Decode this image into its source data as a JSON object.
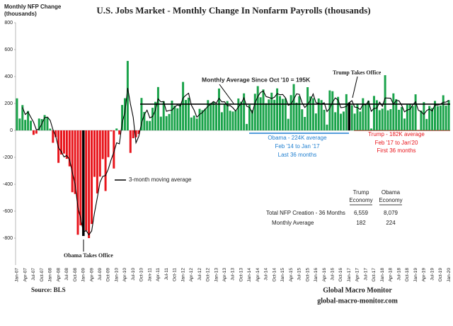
{
  "chart_data": {
    "type": "bar",
    "title": "U.S. Jobs Market - Monthly Change In Nonfarm Payrolls (thousands)",
    "y_label": [
      "Monthly NFP Change",
      "(thousands)"
    ],
    "categories": [
      "Jan-07",
      null,
      null,
      "Apr-07",
      null,
      null,
      "Jul-07",
      null,
      null,
      "Oct-07",
      null,
      null,
      "Jan-08",
      null,
      null,
      "Apr-08",
      null,
      null,
      "Jul-08",
      null,
      null,
      "Oct-08",
      null,
      null,
      "Jan-09",
      null,
      null,
      "Apr-09",
      null,
      null,
      "Jul-09",
      null,
      null,
      "Oct-09",
      null,
      null,
      "Jan-10",
      null,
      null,
      "Apr-10",
      null,
      null,
      "Jul-10",
      null,
      null,
      "Oct-10",
      null,
      null,
      "Jan-11",
      null,
      null,
      "Apr-11",
      null,
      null,
      "Jul-11",
      null,
      null,
      "Oct-11",
      null,
      null,
      "Jan-12",
      null,
      null,
      "Apr-12",
      null,
      null,
      "Jul-12",
      null,
      null,
      "Oct-12",
      null,
      null,
      "Jan-13",
      null,
      null,
      "Apr-13",
      null,
      null,
      "Jul-13",
      null,
      null,
      "Oct-13",
      null,
      null,
      "Jan-14",
      null,
      null,
      "Apr-14",
      null,
      null,
      "Jul-14",
      null,
      null,
      "Oct-14",
      null,
      null,
      "Jan-15",
      null,
      null,
      "Apr-15",
      null,
      null,
      "Jul-15",
      null,
      null,
      "Oct-15",
      null,
      null,
      "Jan-16",
      null,
      null,
      "Apr-16",
      null,
      null,
      "Jul-16",
      null,
      null,
      "Oct-16",
      null,
      null,
      "Jan-17",
      null,
      null,
      "Apr-17",
      null,
      null,
      "Jul-17",
      null,
      null,
      "Oct-17",
      null,
      null,
      "Jan-18",
      null,
      null,
      "Apr-18",
      null,
      null,
      "Jul-18",
      null,
      null,
      "Oct-18",
      null,
      null,
      "Jan-19",
      null,
      null,
      "Apr-19",
      null,
      null,
      "Jul-19",
      null,
      null,
      "Oct-19",
      null,
      null,
      "Jan-20"
    ],
    "values": [
      238,
      88,
      188,
      78,
      144,
      72,
      -33,
      -24,
      88,
      84,
      114,
      98,
      13,
      -92,
      -50,
      -241,
      -179,
      -172,
      -211,
      -267,
      -459,
      -472,
      -775,
      -705,
      -784,
      -743,
      -800,
      -695,
      -345,
      -468,
      -343,
      -213,
      -450,
      -199,
      -7,
      -283,
      14,
      -30,
      189,
      239,
      516,
      -167,
      -58,
      -51,
      -27,
      241,
      137,
      71,
      70,
      168,
      212,
      322,
      102,
      217,
      106,
      122,
      221,
      183,
      164,
      196,
      360,
      226,
      243,
      96,
      110,
      88,
      160,
      150,
      161,
      225,
      203,
      214,
      190,
      311,
      135,
      192,
      218,
      146,
      140,
      147,
      237,
      213,
      275,
      48,
      190,
      151,
      272,
      329,
      246,
      304,
      202,
      230,
      280,
      227,
      312,
      255,
      234,
      238,
      86,
      262,
      344,
      206,
      254,
      157,
      100,
      321,
      252,
      239,
      126,
      237,
      225,
      153,
      43,
      297,
      291,
      135,
      249,
      124,
      140,
      269,
      207,
      187,
      125,
      199,
      140,
      239,
      190,
      221,
      14,
      256,
      224,
      150,
      162,
      410,
      149,
      158,
      275,
      232,
      153,
      174,
      88,
      191,
      195,
      180,
      268,
      1,
      147,
      210,
      85,
      182,
      166,
      219,
      180,
      185,
      261,
      184,
      225
    ],
    "positive_color": "#1aa34a",
    "negative_color": "#e8141b",
    "highlight_color": "#000000",
    "moving_average": {
      "name": "3-month moving average",
      "color": "#000000",
      "values": [
        null,
        null,
        171,
        118,
        137,
        98,
        61,
        5,
        10,
        49,
        95,
        99,
        75,
        6,
        -43,
        -128,
        -157,
        -197,
        -187,
        -217,
        -312,
        -399,
        -569,
        -651,
        -755,
        -744,
        -776,
        -746,
        -613,
        -503,
        -385,
        -341,
        -335,
        -287,
        -219,
        -163,
        -92,
        -100,
        58,
        133,
        315,
        196,
        97,
        -92,
        -45,
        54,
        117,
        150,
        93,
        103,
        150,
        234,
        212,
        214,
        142,
        148,
        150,
        175,
        189,
        181,
        240,
        261,
        276,
        188,
        150,
        98,
        119,
        133,
        157,
        179,
        196,
        214,
        202,
        238,
        212,
        213,
        182,
        185,
        168,
        144,
        175,
        199,
        242,
        179,
        171,
        130,
        204,
        251,
        282,
        293,
        251,
        245,
        237,
        246,
        273,
        265,
        267,
        242,
        186,
        195,
        231,
        271,
        268,
        206,
        170,
        193,
        224,
        271,
        206,
        201,
        196,
        205,
        140,
        164,
        210,
        241,
        225,
        169,
        171,
        178,
        205,
        221,
        173,
        170,
        155,
        193,
        190,
        217,
        142,
        164,
        165,
        210,
        179,
        241,
        240,
        239,
        194,
        222,
        220,
        186,
        138,
        151,
        158,
        189,
        214,
        150,
        139,
        119,
        147,
        159,
        144,
        189,
        188,
        195,
        209,
        210,
        223
      ]
    },
    "average": 195,
    "average_label": "Monthly Average Since Oct '10 = 195K",
    "trump_label": "Trump  Takes Office",
    "obama_label": "Obama  Takes Office",
    "obama_note": [
      "Obama - 224K average",
      "Feb '14 to Jan '17",
      "Last 36 months"
    ],
    "trump_note": [
      "Trump - 182K average",
      "Feb '17 to Jan'20",
      "First 36 months"
    ],
    "ylim": [
      -1000,
      800
    ],
    "yticks": [
      -800,
      -600,
      -400,
      -200,
      0,
      200,
      400,
      600,
      800
    ],
    "grid": false
  },
  "summary_table": {
    "columns": [
      [
        "Trump",
        "Economy"
      ],
      [
        "Obama",
        "Economy"
      ]
    ],
    "rows": [
      [
        "Total NFP Creation - 36 Months",
        "6,559",
        "8,079"
      ],
      [
        "Monthly Average",
        "182",
        "224"
      ]
    ]
  },
  "source": "Source:  BLS",
  "footer": [
    "Global Macro Monitor",
    "global-macro-monitor.com"
  ]
}
